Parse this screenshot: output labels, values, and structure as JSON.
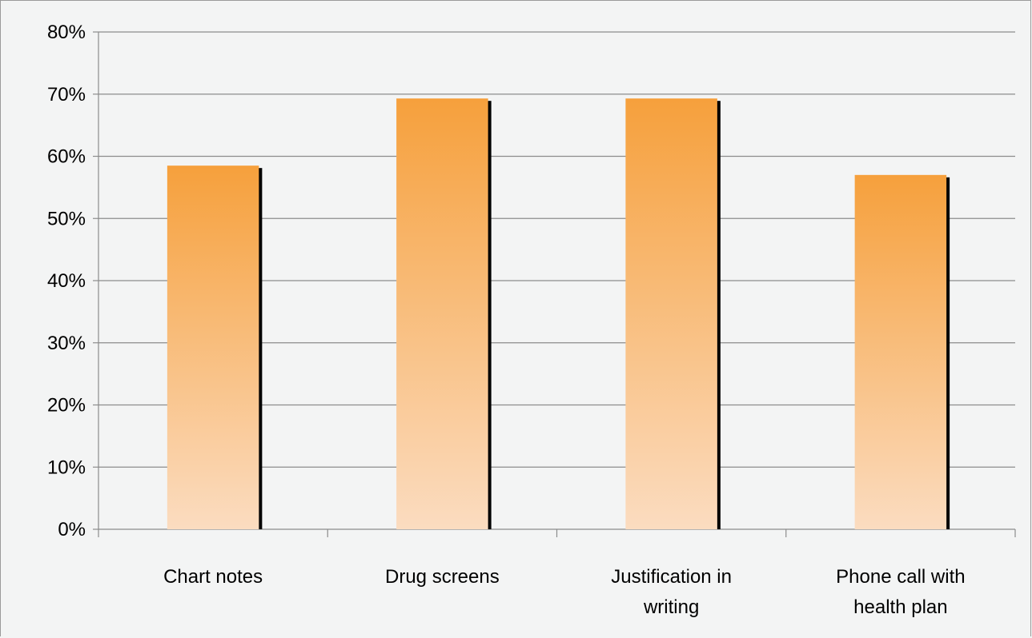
{
  "chart_data": {
    "type": "bar",
    "title": "",
    "xlabel": "",
    "ylabel": "",
    "categories": [
      [
        "Chart notes"
      ],
      [
        "Drug screens"
      ],
      [
        "Justification in",
        "writing"
      ],
      [
        "Phone call with",
        "health plan"
      ]
    ],
    "values": [
      58.5,
      69.3,
      69.3,
      57
    ],
    "ylim": [
      0,
      80
    ],
    "yticks": [
      0,
      10,
      20,
      30,
      40,
      50,
      60,
      70,
      80
    ],
    "ytick_labels": [
      "0%",
      "10%",
      "20%",
      "30%",
      "40%",
      "50%",
      "60%",
      "70%",
      "80%"
    ],
    "grid": true,
    "legend": "none",
    "colors": {
      "bar_top": "#f6a03c",
      "bar_bottom": "#fbdcc0",
      "bar_shadow": "#000000",
      "gridline": "#8c8c8c",
      "background": "#f3f4f4"
    }
  }
}
